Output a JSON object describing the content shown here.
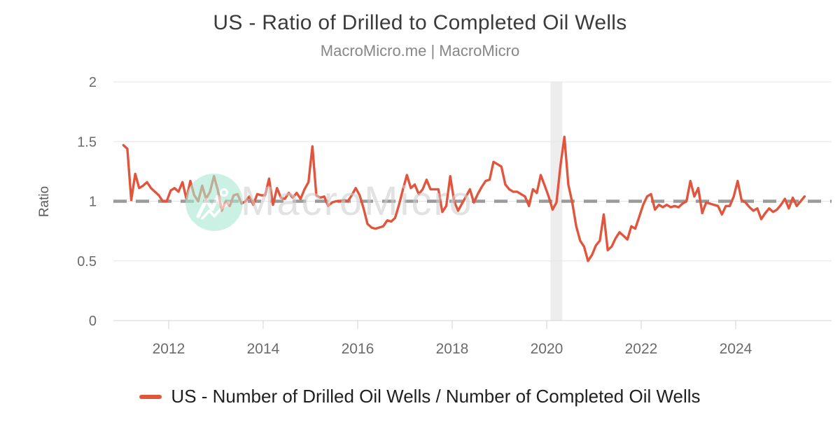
{
  "header": {
    "title": "US - Ratio of Drilled to Completed Oil Wells",
    "subtitle": "MacroMicro.me | MacroMicro"
  },
  "chart_data": {
    "type": "line",
    "title": "US - Ratio of Drilled to Completed Oil Wells",
    "subtitle": "MacroMicro.me | MacroMicro",
    "ylabel": "Ratio",
    "ylim": [
      0,
      2
    ],
    "y_ticks": [
      0,
      0.5,
      1,
      1.5,
      2
    ],
    "xlim": [
      2010.83,
      2026.03
    ],
    "x_ticks": [
      2012,
      2014,
      2016,
      2018,
      2020,
      2022,
      2024
    ],
    "grid": true,
    "legend_position": "bottom",
    "reference_line": {
      "value": 1,
      "style": "dashed",
      "color": "#9a9a9a"
    },
    "recession_band": {
      "from": 2020.08,
      "to": 2020.33,
      "color": "#ededed"
    },
    "watermark": {
      "text": "MacroMicro",
      "logo": "macromicro-logo",
      "circle_color": "#aae8d3"
    },
    "series": [
      {
        "name": "US - Number of Drilled Oil Wells / Number of Completed Oil Wells",
        "color": "#e2553d",
        "frequency": "monthly",
        "start_year": 2011,
        "start_month": 1,
        "values": [
          1.47,
          1.44,
          1.01,
          1.23,
          1.11,
          1.13,
          1.16,
          1.11,
          1.08,
          1.05,
          1.0,
          1.0,
          1.09,
          1.11,
          1.08,
          1.16,
          1.02,
          1.17,
          1.05,
          1.0,
          1.13,
          1.02,
          1.08,
          1.21,
          1.09,
          0.92,
          1.0,
          0.96,
          1.05,
          1.06,
          0.98,
          1.0,
          1.04,
          0.97,
          1.06,
          1.05,
          1.05,
          1.19,
          0.97,
          1.11,
          1.03,
          1.02,
          1.07,
          1.03,
          1.07,
          1.02,
          1.1,
          1.16,
          1.46,
          1.05,
          1.03,
          1.04,
          0.96,
          0.99,
          1.0,
          1.0,
          1.01,
          1.0,
          1.05,
          1.11,
          1.05,
          0.94,
          0.81,
          0.78,
          0.77,
          0.78,
          0.79,
          0.84,
          0.83,
          0.86,
          0.97,
          1.1,
          1.22,
          1.11,
          1.14,
          1.06,
          1.1,
          1.18,
          1.1,
          1.1,
          1.1,
          0.91,
          0.96,
          1.21,
          1.0,
          0.92,
          0.98,
          1.04,
          1.1,
          0.99,
          1.06,
          1.12,
          1.17,
          1.18,
          1.33,
          1.31,
          1.29,
          1.14,
          1.1,
          1.08,
          1.08,
          1.06,
          1.04,
          0.96,
          1.1,
          1.07,
          1.22,
          1.13,
          1.04,
          0.93,
          0.99,
          1.3,
          1.54,
          1.14,
          0.99,
          0.79,
          0.67,
          0.62,
          0.5,
          0.55,
          0.63,
          0.67,
          0.89,
          0.59,
          0.62,
          0.69,
          0.74,
          0.71,
          0.68,
          0.79,
          0.77,
          0.87,
          0.97,
          1.04,
          1.06,
          0.93,
          0.97,
          0.95,
          0.97,
          0.95,
          0.96,
          0.95,
          0.98,
          1.0,
          1.17,
          1.04,
          1.11,
          0.9,
          0.99,
          0.98,
          0.97,
          0.96,
          0.89,
          0.96,
          0.96,
          1.04,
          1.17,
          1.01,
          0.99,
          0.95,
          0.92,
          0.94,
          0.85,
          0.9,
          0.94,
          0.91,
          0.93,
          0.97,
          1.02,
          0.94,
          1.03,
          0.96,
          1.0,
          1.04
        ]
      }
    ]
  }
}
